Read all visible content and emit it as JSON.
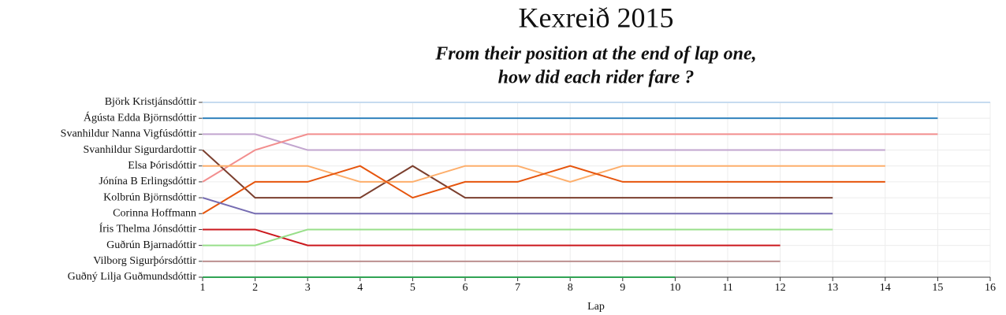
{
  "chart_data": {
    "type": "line",
    "title": "Kexreið 2015",
    "subtitle": [
      "From their position at the end of lap one,",
      "how did each rider fare ?"
    ],
    "xlabel": "Lap",
    "x": [
      1,
      2,
      3,
      4,
      5,
      6,
      7,
      8,
      9,
      10,
      11,
      12,
      13,
      14,
      15,
      16
    ],
    "xlim": [
      1,
      16
    ],
    "xticks": [
      1,
      2,
      3,
      4,
      5,
      6,
      7,
      8,
      9,
      10,
      11,
      12,
      13,
      14,
      15,
      16
    ],
    "ylim": [
      1,
      12
    ],
    "y_reversed": true,
    "yticks": [
      {
        "value": 1,
        "label": "Björk Kristjánsdóttir"
      },
      {
        "value": 2,
        "label": "Ágústa Edda Björnsdóttir"
      },
      {
        "value": 3,
        "label": "Svanhildur Nanna Vigfúsdóttir"
      },
      {
        "value": 4,
        "label": "Svanhildur Sigurdardottir"
      },
      {
        "value": 5,
        "label": "Elsa Þórisdóttir"
      },
      {
        "value": 6,
        "label": "Jónína B Erlingsdóttir"
      },
      {
        "value": 7,
        "label": "Kolbrún Björnsdóttir"
      },
      {
        "value": 8,
        "label": "Corinna Hoffmann"
      },
      {
        "value": 9,
        "label": "Íris Thelma Jónsdóttir"
      },
      {
        "value": 10,
        "label": "Guðrún Bjarnadóttir"
      },
      {
        "value": 11,
        "label": "Vilborg Sigurþórsdóttir"
      },
      {
        "value": 12,
        "label": "Guðný Lilja Guðmundsdóttir"
      }
    ],
    "grid": true,
    "series": [
      {
        "color": "#c6dbef",
        "values": [
          1,
          1,
          1,
          1,
          1,
          1,
          1,
          1,
          1,
          1,
          1,
          1,
          1,
          1,
          1,
          1
        ]
      },
      {
        "color": "#3182bd",
        "values": [
          2,
          2,
          2,
          2,
          2,
          2,
          2,
          2,
          2,
          2,
          2,
          2,
          2,
          2,
          2,
          null
        ]
      },
      {
        "color": "#c2a5cf",
        "values": [
          3,
          3,
          4,
          4,
          4,
          4,
          4,
          4,
          4,
          4,
          4,
          4,
          4,
          4,
          null,
          null
        ]
      },
      {
        "color": "#f28e8e",
        "values": [
          6,
          4,
          3,
          3,
          3,
          3,
          3,
          3,
          3,
          3,
          3,
          3,
          3,
          3,
          3,
          null
        ]
      },
      {
        "color": "#7b3f2e",
        "values": [
          4,
          7,
          7,
          7,
          5,
          7,
          7,
          7,
          7,
          7,
          7,
          7,
          7,
          null,
          null,
          null
        ]
      },
      {
        "color": "#fdae6b",
        "values": [
          5,
          5,
          5,
          6,
          6,
          5,
          5,
          6,
          5,
          5,
          5,
          5,
          5,
          5,
          null,
          null
        ]
      },
      {
        "color": "#e6550d",
        "values": [
          8,
          6,
          6,
          5,
          7,
          6,
          6,
          5,
          6,
          6,
          6,
          6,
          6,
          6,
          null,
          null
        ]
      },
      {
        "color": "#756bb1",
        "values": [
          7,
          8,
          8,
          8,
          8,
          8,
          8,
          8,
          8,
          8,
          8,
          8,
          8,
          null,
          null,
          null
        ]
      },
      {
        "color": "#cb181d",
        "values": [
          9,
          9,
          10,
          10,
          10,
          10,
          10,
          10,
          10,
          10,
          10,
          10,
          null,
          null,
          null,
          null
        ]
      },
      {
        "color": "#98df8a",
        "values": [
          10,
          10,
          9,
          9,
          9,
          9,
          9,
          9,
          9,
          9,
          9,
          9,
          9,
          null,
          null,
          null
        ]
      },
      {
        "color": "#bc8f8f",
        "values": [
          11,
          11,
          11,
          11,
          11,
          11,
          11,
          11,
          11,
          11,
          11,
          11,
          null,
          null,
          null,
          null
        ]
      },
      {
        "color": "#31a354",
        "values": [
          12,
          12,
          12,
          12,
          12,
          12,
          12,
          12,
          12,
          12,
          null,
          null,
          null,
          null,
          null,
          null
        ]
      }
    ]
  }
}
